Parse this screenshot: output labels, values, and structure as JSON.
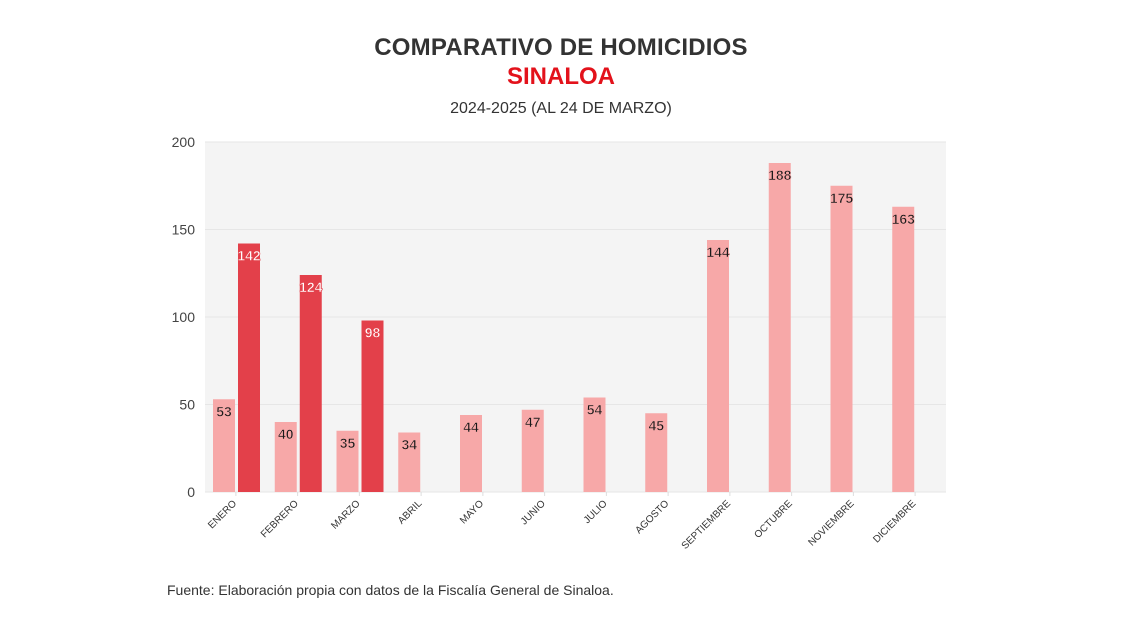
{
  "header": {
    "title": "COMPARATIVO DE HOMICIDIOS",
    "region": "SINALOA",
    "period": "2024-2025 (AL 24 DE MARZO)"
  },
  "footer": {
    "source": "Fuente: Elaboración propia con datos de la Fiscalía General de Sinaloa."
  },
  "colors": {
    "series_2024": "#f7a8a8",
    "series_2025": "#e3404a",
    "plot_background": "#f4f4f4",
    "gridline": "#e6e6e6",
    "title": "#333333",
    "region": "#e3121b"
  },
  "chart_data": {
    "type": "bar",
    "title": "COMPARATIVO DE HOMICIDIOS",
    "subtitle": "SINALOA — 2024-2025 (AL 24 DE MARZO)",
    "xlabel": "",
    "ylabel": "",
    "ylim": [
      0,
      200
    ],
    "yticks": [
      0,
      50,
      100,
      150,
      200
    ],
    "ytick_labels": [
      "0",
      "50",
      "100",
      "150",
      "200"
    ],
    "grid": true,
    "legend": "none",
    "categories": [
      "ENERO",
      "FEBRERO",
      "MARZO",
      "ABRIL",
      "MAYO",
      "JUNIO",
      "JULIO",
      "AGOSTO",
      "SEPTIEMBRE",
      "OCTUBRE",
      "NOVIEMBRE",
      "DICIEMBRE"
    ],
    "series": [
      {
        "name": "2024",
        "values": [
          53,
          40,
          35,
          34,
          44,
          47,
          54,
          45,
          144,
          188,
          175,
          163
        ]
      },
      {
        "name": "2025",
        "values": [
          142,
          124,
          98,
          null,
          null,
          null,
          null,
          null,
          null,
          null,
          null,
          null
        ]
      }
    ],
    "data_labels": true
  }
}
